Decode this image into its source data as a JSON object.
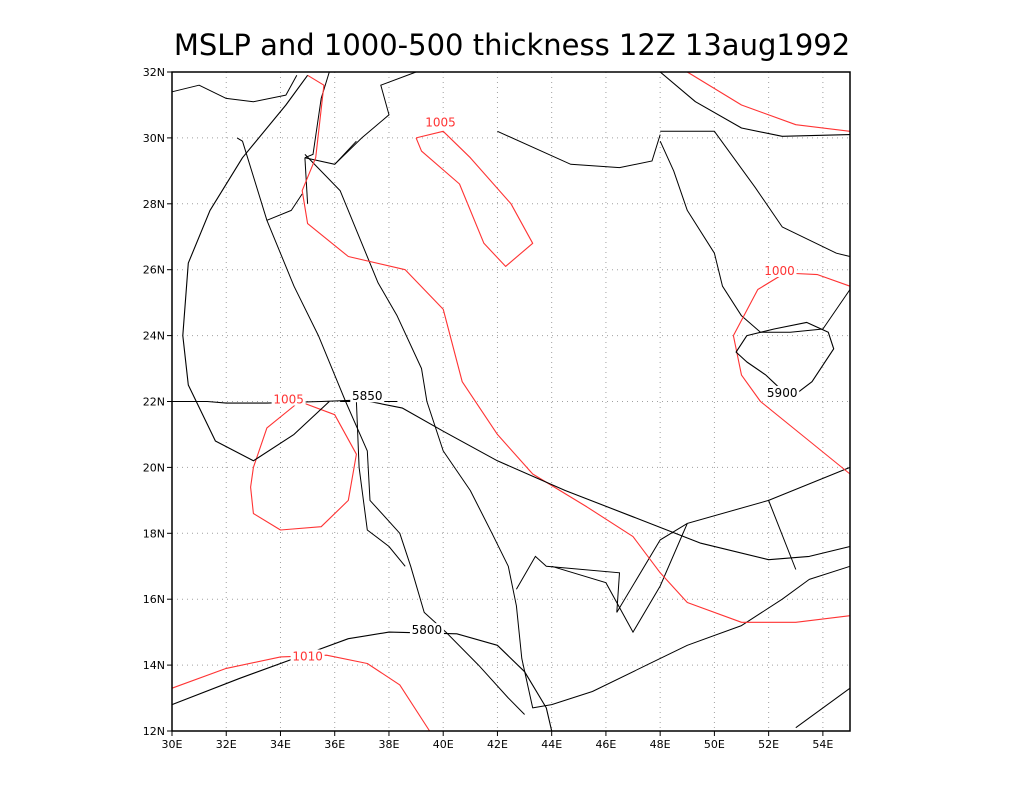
{
  "title": "MSLP and 1000-500 thickness 12Z 13aug1992",
  "colors": {
    "mslp": "#ff3333",
    "thickness": "#000000",
    "coast": "#000000",
    "grid": "#a0a0a0"
  },
  "axes": {
    "lon_range": [
      30,
      55
    ],
    "lat_range": [
      12,
      32
    ],
    "lon_ticks": [
      {
        "value": 30,
        "label": "30E"
      },
      {
        "value": 32,
        "label": "32E"
      },
      {
        "value": 34,
        "label": "34E"
      },
      {
        "value": 36,
        "label": "36E"
      },
      {
        "value": 38,
        "label": "38E"
      },
      {
        "value": 40,
        "label": "40E"
      },
      {
        "value": 42,
        "label": "42E"
      },
      {
        "value": 44,
        "label": "44E"
      },
      {
        "value": 46,
        "label": "46E"
      },
      {
        "value": 48,
        "label": "48E"
      },
      {
        "value": 50,
        "label": "50E"
      },
      {
        "value": 52,
        "label": "52E"
      },
      {
        "value": 54,
        "label": "54E"
      }
    ],
    "lat_ticks": [
      {
        "value": 12,
        "label": "12N"
      },
      {
        "value": 14,
        "label": "14N"
      },
      {
        "value": 16,
        "label": "16N"
      },
      {
        "value": 18,
        "label": "18N"
      },
      {
        "value": 20,
        "label": "20N"
      },
      {
        "value": 22,
        "label": "22N"
      },
      {
        "value": 24,
        "label": "24N"
      },
      {
        "value": 26,
        "label": "26N"
      },
      {
        "value": 28,
        "label": "28N"
      },
      {
        "value": 30,
        "label": "30N"
      },
      {
        "value": 32,
        "label": "32N"
      }
    ],
    "grid": true
  },
  "contours": {
    "mslp": [
      {
        "label": "1005",
        "label_at": [
          39.9,
          30.4
        ],
        "points": [
          [
            39.0,
            30.0
          ],
          [
            40.0,
            30.2
          ],
          [
            41.0,
            29.4
          ],
          [
            42.5,
            28.0
          ],
          [
            43.3,
            26.8
          ],
          [
            42.3,
            26.1
          ],
          [
            41.5,
            26.8
          ],
          [
            40.6,
            28.6
          ],
          [
            39.2,
            29.6
          ],
          [
            39.0,
            30.0
          ]
        ]
      },
      {
        "label": "1005",
        "label_at": [
          34.3,
          22.0
        ],
        "points": [
          [
            33.0,
            20.0
          ],
          [
            33.5,
            21.2
          ],
          [
            34.7,
            22.0
          ],
          [
            36.0,
            21.6
          ],
          [
            36.8,
            20.4
          ],
          [
            36.5,
            19.0
          ],
          [
            35.5,
            18.2
          ],
          [
            34.0,
            18.1
          ],
          [
            33.0,
            18.6
          ],
          [
            32.9,
            19.4
          ],
          [
            33.0,
            20.0
          ]
        ]
      },
      {
        "label": "1010",
        "label_at": [
          35.0,
          14.2
        ],
        "points": [
          [
            30.0,
            13.3
          ],
          [
            32.0,
            13.9
          ],
          [
            34.0,
            14.25
          ],
          [
            35.7,
            14.3
          ],
          [
            37.2,
            14.05
          ],
          [
            38.4,
            13.4
          ],
          [
            39.5,
            12.0
          ]
        ]
      },
      {
        "label": "1000",
        "label_at": [
          52.4,
          25.9
        ],
        "points": [
          [
            50.7,
            24.0
          ],
          [
            51.6,
            25.4
          ],
          [
            52.6,
            25.9
          ],
          [
            53.8,
            25.85
          ],
          [
            55.0,
            25.5
          ]
        ]
      },
      {
        "label": "",
        "label_at": null,
        "points": [
          [
            50.7,
            24.0
          ],
          [
            51.0,
            22.8
          ],
          [
            51.7,
            22.0
          ],
          [
            53.5,
            20.8
          ],
          [
            55.0,
            19.8
          ]
        ]
      },
      {
        "label": "",
        "label_at": null,
        "points": [
          [
            35.0,
            31.9
          ],
          [
            35.6,
            31.6
          ],
          [
            35.3,
            29.4
          ],
          [
            34.8,
            28.4
          ],
          [
            35.0,
            27.4
          ],
          [
            36.5,
            26.4
          ],
          [
            38.6,
            26.0
          ],
          [
            40.0,
            24.8
          ],
          [
            40.7,
            22.6
          ],
          [
            42.0,
            21.0
          ],
          [
            43.3,
            19.8
          ],
          [
            45.3,
            18.8
          ],
          [
            47.0,
            17.9
          ],
          [
            48.0,
            16.8
          ],
          [
            49.0,
            15.9
          ],
          [
            51.0,
            15.3
          ],
          [
            53.0,
            15.3
          ],
          [
            55.0,
            15.5
          ]
        ]
      },
      {
        "label": "",
        "label_at": null,
        "points": [
          [
            49.0,
            32.0
          ],
          [
            51.0,
            31.0
          ],
          [
            53.0,
            30.4
          ],
          [
            55.0,
            30.2
          ]
        ]
      }
    ],
    "thickness": [
      {
        "label": "5850",
        "label_at": [
          37.2,
          22.1
        ],
        "points": [
          [
            30.0,
            22.0
          ],
          [
            31.3,
            22.0
          ],
          [
            32.0,
            21.95
          ],
          [
            33.5,
            21.95
          ],
          [
            35.5,
            22.0
          ],
          [
            37.0,
            22.05
          ],
          [
            38.5,
            21.8
          ],
          [
            40.0,
            21.1
          ],
          [
            42.0,
            20.2
          ],
          [
            44.5,
            19.3
          ],
          [
            47.0,
            18.5
          ],
          [
            49.5,
            17.7
          ],
          [
            52.0,
            17.2
          ],
          [
            53.5,
            17.3
          ],
          [
            55.0,
            17.6
          ]
        ]
      },
      {
        "label": "",
        "label_at": null,
        "points": [
          [
            35.8,
            22.0
          ],
          [
            34.5,
            21.0
          ],
          [
            33.0,
            20.2
          ],
          [
            31.6,
            20.8
          ],
          [
            30.6,
            22.5
          ],
          [
            30.4,
            24.0
          ],
          [
            30.6,
            26.2
          ],
          [
            31.4,
            27.8
          ],
          [
            32.6,
            29.4
          ],
          [
            34.2,
            31.0
          ],
          [
            35.0,
            31.9
          ]
        ]
      },
      {
        "label": "5800",
        "label_at": [
          39.4,
          15.0
        ],
        "points": [
          [
            30.0,
            12.8
          ],
          [
            32.5,
            13.6
          ],
          [
            35.0,
            14.35
          ],
          [
            36.5,
            14.8
          ],
          [
            38.0,
            15.0
          ],
          [
            40.5,
            14.95
          ],
          [
            42.0,
            14.6
          ],
          [
            43.0,
            13.8
          ],
          [
            43.8,
            12.7
          ],
          [
            44.0,
            12.0
          ]
        ]
      },
      {
        "label": "5900",
        "label_at": [
          52.5,
          22.2
        ],
        "points": [
          [
            51.9,
            22.8
          ],
          [
            51.2,
            23.2
          ],
          [
            50.8,
            23.5
          ],
          [
            51.2,
            24.0
          ],
          [
            52.2,
            24.2
          ],
          [
            53.4,
            24.4
          ],
          [
            54.2,
            24.1
          ],
          [
            54.4,
            23.6
          ],
          [
            53.6,
            22.6
          ],
          [
            52.8,
            22.1
          ],
          [
            51.9,
            22.8
          ]
        ]
      },
      {
        "label": "",
        "label_at": null,
        "points": [
          [
            48.0,
            32.0
          ],
          [
            49.3,
            31.1
          ],
          [
            51.0,
            30.3
          ],
          [
            52.5,
            30.05
          ],
          [
            55.0,
            30.1
          ]
        ]
      }
    ]
  },
  "coastlines": [
    [
      [
        30.0,
        31.4
      ],
      [
        31.0,
        31.6
      ],
      [
        32.0,
        31.2
      ],
      [
        33.0,
        31.1
      ],
      [
        34.2,
        31.3
      ],
      [
        34.6,
        31.9
      ]
    ],
    [
      [
        34.8,
        28.3
      ],
      [
        34.4,
        27.8
      ],
      [
        33.5,
        27.5
      ],
      [
        32.6,
        29.9
      ],
      [
        32.4,
        30.0
      ]
    ],
    [
      [
        34.9,
        29.4
      ],
      [
        35.0,
        28.0
      ]
    ],
    [
      [
        34.9,
        29.5
      ],
      [
        36.2,
        28.4
      ],
      [
        36.8,
        27.2
      ],
      [
        37.6,
        25.6
      ],
      [
        38.3,
        24.6
      ],
      [
        39.2,
        23.0
      ],
      [
        39.4,
        22.0
      ],
      [
        40.0,
        20.5
      ],
      [
        41.0,
        19.3
      ],
      [
        41.8,
        18.0
      ],
      [
        42.4,
        17.0
      ],
      [
        42.7,
        15.8
      ],
      [
        42.9,
        14.2
      ],
      [
        43.3,
        12.7
      ],
      [
        44.0,
        12.8
      ],
      [
        45.5,
        13.2
      ],
      [
        47.5,
        14.0
      ],
      [
        49.0,
        14.6
      ],
      [
        51.0,
        15.2
      ],
      [
        52.5,
        16.0
      ],
      [
        53.5,
        16.6
      ],
      [
        55.0,
        17.0
      ]
    ],
    [
      [
        33.5,
        27.5
      ],
      [
        34.5,
        25.5
      ],
      [
        35.4,
        24.0
      ],
      [
        36.4,
        22.0
      ],
      [
        37.2,
        20.5
      ],
      [
        37.3,
        19.0
      ],
      [
        38.4,
        18.0
      ],
      [
        38.8,
        17.0
      ],
      [
        39.3,
        15.6
      ],
      [
        40.1,
        15.0
      ],
      [
        41.3,
        14.0
      ],
      [
        42.4,
        13.0
      ],
      [
        43.0,
        12.5
      ]
    ],
    [
      [
        48.0,
        29.9
      ],
      [
        48.5,
        29.0
      ],
      [
        49.0,
        27.8
      ],
      [
        50.0,
        26.5
      ],
      [
        50.3,
        25.5
      ],
      [
        51.0,
        24.6
      ],
      [
        51.7,
        24.1
      ],
      [
        52.8,
        24.1
      ],
      [
        54.0,
        24.2
      ],
      [
        55.0,
        25.4
      ]
    ],
    [
      [
        48.0,
        30.2
      ],
      [
        50.0,
        30.2
      ],
      [
        51.5,
        28.5
      ],
      [
        52.5,
        27.3
      ],
      [
        54.5,
        26.5
      ],
      [
        55.0,
        26.4
      ]
    ],
    [
      [
        53.0,
        12.1
      ],
      [
        55.0,
        13.3
      ]
    ]
  ],
  "borders": [
    [
      [
        35.8,
        32.0
      ],
      [
        35.5,
        31.2
      ],
      [
        35.2,
        29.5
      ],
      [
        34.9,
        29.4
      ]
    ],
    [
      [
        34.9,
        29.4
      ],
      [
        36.0,
        29.2
      ],
      [
        37.0,
        30.0
      ],
      [
        38.0,
        30.7
      ],
      [
        37.7,
        31.6
      ],
      [
        39.0,
        32.0
      ]
    ],
    [
      [
        36.0,
        29.2
      ],
      [
        36.8,
        29.9
      ]
    ],
    [
      [
        42.0,
        30.2
      ],
      [
        44.7,
        29.2
      ],
      [
        46.5,
        29.1
      ],
      [
        47.7,
        29.3
      ],
      [
        48.0,
        30.1
      ]
    ],
    [
      [
        36.2,
        22.0
      ],
      [
        37.6,
        22.0
      ],
      [
        38.3,
        22.0
      ]
    ],
    [
      [
        36.8,
        22.0
      ],
      [
        36.9,
        20.0
      ],
      [
        37.2,
        18.1
      ],
      [
        38.0,
        17.6
      ],
      [
        38.6,
        17.0
      ]
    ],
    [
      [
        44.0,
        17.0
      ],
      [
        46.0,
        16.5
      ],
      [
        47.0,
        15.0
      ],
      [
        48.0,
        16.4
      ],
      [
        49.0,
        18.3
      ],
      [
        52.0,
        19.0
      ],
      [
        53.0,
        16.9
      ]
    ],
    [
      [
        42.7,
        16.3
      ],
      [
        43.4,
        17.3
      ],
      [
        43.8,
        17.0
      ],
      [
        46.5,
        16.8
      ],
      [
        46.4,
        15.6
      ],
      [
        48.0,
        17.8
      ],
      [
        49.0,
        18.3
      ]
    ],
    [
      [
        52.0,
        19.0
      ],
      [
        55.0,
        20.0
      ]
    ]
  ]
}
